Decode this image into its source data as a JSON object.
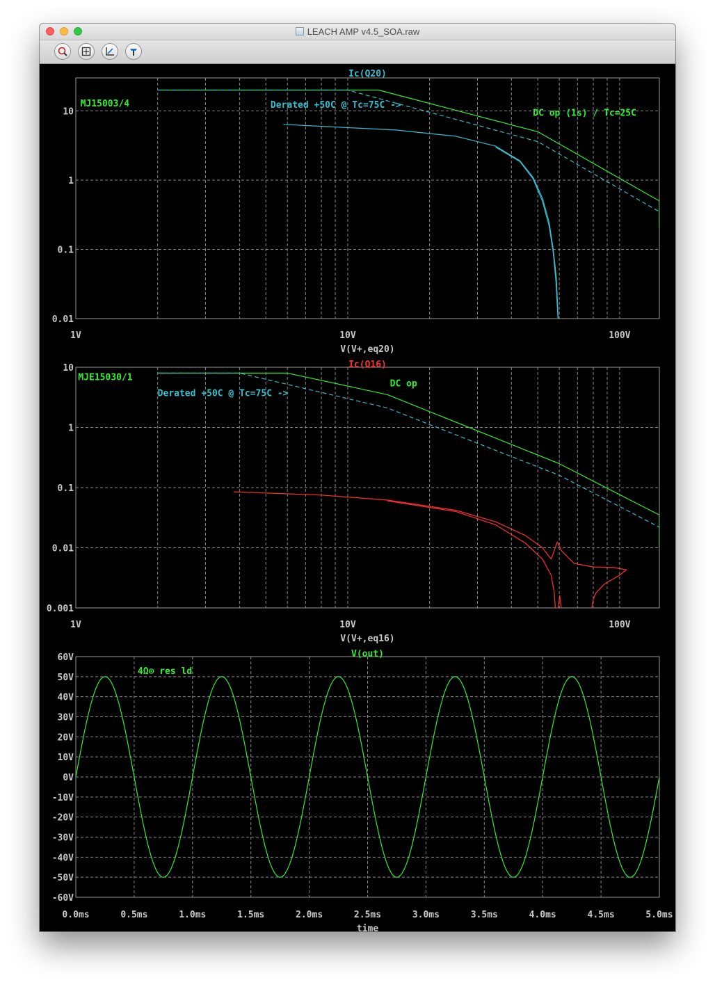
{
  "window": {
    "title": "LEACH AMP v4.5_SOA.raw",
    "toolbar": [
      "zoom-icon",
      "autorange-icon",
      "axis-icon",
      "probe-icon"
    ]
  },
  "colors": {
    "background": "#000000",
    "grid": "#8a8a8a",
    "ticks": "#c8c8c8",
    "green": "#33ee33",
    "cyan": "#33c0d0",
    "red": "#ff3030"
  },
  "chart_data": [
    {
      "type": "line",
      "title": "Ic(Q20)",
      "title_color": "#33c0d0",
      "xlabel": "V(V+,eq20)",
      "x_scale": "log",
      "y_scale": "log",
      "xlim": [
        1,
        140
      ],
      "ylim": [
        0.01,
        30
      ],
      "x_ticks": [
        "1V",
        "10V",
        "100V"
      ],
      "y_ticks": [
        "10",
        "1",
        "0.1",
        "0.01"
      ],
      "grid": true,
      "annotations": [
        {
          "text": "MJ15003/4",
          "color": "#33ee33",
          "x": 1.04,
          "y": 13
        },
        {
          "text": "Derated +50C @ Tc=75C ->",
          "color": "#33c0d0",
          "x": 5.2,
          "y": 12.5
        },
        {
          "text": "DC op (1s) / Tc=25C",
          "color": "#33ee33",
          "x": 48,
          "y": 9.5
        }
      ],
      "series": [
        {
          "color": "#33ee33",
          "style": "solid",
          "points": [
            [
              2,
              20
            ],
            [
              13,
              20
            ],
            [
              50,
              5
            ],
            [
              140,
              0.5
            ],
            [
              140,
              0.2
            ]
          ]
        },
        {
          "color": "#33c0d0",
          "style": "dashed",
          "points": [
            [
              2,
              20
            ],
            [
              10,
              20
            ],
            [
              50,
              3.6
            ],
            [
              140,
              0.35
            ]
          ]
        },
        {
          "color": "#33c0d0",
          "style": "solid",
          "points": [
            [
              5.8,
              6.4
            ],
            [
              8,
              6
            ],
            [
              15,
              5.3
            ],
            [
              25,
              4.3
            ],
            [
              35,
              3.1
            ],
            [
              43,
              1.9
            ],
            [
              48,
              1.1
            ],
            [
              52,
              0.55
            ],
            [
              55,
              0.25
            ],
            [
              57,
              0.1
            ],
            [
              58.5,
              0.04
            ],
            [
              59.5,
              0.01
            ]
          ]
        },
        {
          "color": "#33c0d0",
          "style": "solid",
          "points": [
            [
              35,
              3.0
            ],
            [
              43,
              1.85
            ],
            [
              48,
              1.05
            ],
            [
              52,
              0.5
            ],
            [
              55,
              0.22
            ],
            [
              57,
              0.09
            ],
            [
              58.3,
              0.035
            ],
            [
              59.3,
              0.01
            ]
          ]
        }
      ]
    },
    {
      "type": "line",
      "title": "Ic(Q16)",
      "title_color": "#ff3030",
      "xlabel": "V(V+,eq16)",
      "x_scale": "log",
      "y_scale": "log",
      "xlim": [
        1,
        140
      ],
      "ylim": [
        0.001,
        10
      ],
      "x_ticks": [
        "1V",
        "10V",
        "100V"
      ],
      "y_ticks": [
        "10",
        "1",
        "0.1",
        "0.01",
        "0.001"
      ],
      "grid": true,
      "annotations": [
        {
          "text": "MJE15030/1",
          "color": "#33ee33",
          "x": 1.02,
          "y": 7
        },
        {
          "text": "Derated +50C @ Tc=75C ->",
          "color": "#33c0d0",
          "x": 2,
          "y": 3.8
        },
        {
          "text": "DC op",
          "color": "#33ee33",
          "x": 14.3,
          "y": 5.5
        }
      ],
      "series": [
        {
          "color": "#33ee33",
          "style": "solid",
          "points": [
            [
              2,
              8
            ],
            [
              6,
              8
            ],
            [
              14,
              3.5
            ],
            [
              60,
              0.25
            ],
            [
              140,
              0.035
            ],
            [
              140,
              0.01
            ]
          ]
        },
        {
          "color": "#33c0d0",
          "style": "dashed",
          "points": [
            [
              2,
              8
            ],
            [
              4,
              8
            ],
            [
              14,
              2.1
            ],
            [
              60,
              0.16
            ],
            [
              140,
              0.022
            ]
          ]
        },
        {
          "color": "#ff3030",
          "style": "solid",
          "points": [
            [
              3.8,
              0.085
            ],
            [
              8,
              0.075
            ],
            [
              14,
              0.062
            ],
            [
              25,
              0.042
            ],
            [
              35,
              0.027
            ],
            [
              45,
              0.016
            ],
            [
              52,
              0.01
            ],
            [
              56,
              0.0065
            ],
            [
              58,
              0.01
            ],
            [
              59,
              0.0125
            ],
            [
              61,
              0.009
            ],
            [
              68,
              0.0055
            ],
            [
              80,
              0.0048
            ],
            [
              95,
              0.0047
            ],
            [
              106,
              0.0043
            ],
            [
              100,
              0.0035
            ],
            [
              88,
              0.0025
            ],
            [
              82,
              0.0018
            ],
            [
              80,
              0.0014
            ],
            [
              79,
              0.001
            ]
          ]
        },
        {
          "color": "#ff3030",
          "style": "solid",
          "points": [
            [
              14,
              0.06
            ],
            [
              25,
              0.04
            ],
            [
              35,
              0.024
            ],
            [
              45,
              0.012
            ],
            [
              52,
              0.0065
            ],
            [
              56,
              0.0035
            ],
            [
              57.5,
              0.0018
            ],
            [
              58,
              0.001
            ]
          ]
        },
        {
          "color": "#ff3030",
          "style": "solid",
          "points": [
            [
              59.5,
              0.001
            ],
            [
              60.2,
              0.0016
            ],
            [
              61,
              0.001
            ]
          ]
        }
      ]
    },
    {
      "type": "line",
      "title": "V(out)",
      "title_color": "#33ee33",
      "xlabel": "time",
      "x_scale": "linear",
      "y_scale": "linear",
      "xlim": [
        0,
        5
      ],
      "ylim": [
        -60,
        60
      ],
      "x_ticks": [
        "0.0ms",
        "0.5ms",
        "1.0ms",
        "1.5ms",
        "2.0ms",
        "2.5ms",
        "3.0ms",
        "3.5ms",
        "4.0ms",
        "4.5ms",
        "5.0ms"
      ],
      "y_ticks": [
        "60V",
        "50V",
        "40V",
        "30V",
        "20V",
        "10V",
        "0V",
        "-10V",
        "-20V",
        "-30V",
        "-40V",
        "-50V",
        "-60V"
      ],
      "grid": true,
      "annotations": [
        {
          "text": "4Ω⊙ res ld",
          "color": "#33ee33",
          "x": 0.53,
          "y": 53
        }
      ],
      "series": [
        {
          "color": "#33ee33",
          "style": "solid",
          "waveform": "sine",
          "amplitude_v": 50,
          "frequency_khz": 1,
          "unit_x": "ms"
        }
      ]
    }
  ]
}
